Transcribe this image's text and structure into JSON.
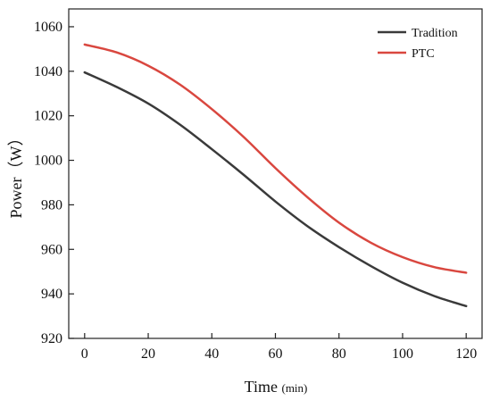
{
  "chart_data": {
    "type": "line",
    "xlabel": "Time",
    "xlabel_unit": "(min)",
    "ylabel": "Power（W）",
    "xlim": [
      -5,
      125
    ],
    "ylim": [
      920,
      1068
    ],
    "x_ticks": [
      0,
      20,
      40,
      60,
      80,
      100,
      120
    ],
    "y_ticks": [
      920,
      940,
      960,
      980,
      1000,
      1020,
      1040,
      1060
    ],
    "legend_position": "top-right",
    "grid": false,
    "series": [
      {
        "name": "Tradition",
        "color": "#3a3a3a",
        "x": [
          0,
          10,
          20,
          30,
          40,
          50,
          60,
          70,
          80,
          90,
          100,
          110,
          120
        ],
        "y": [
          1039.5,
          1033.0,
          1025.5,
          1016.0,
          1005.0,
          993.5,
          981.5,
          970.5,
          961.0,
          952.5,
          945.0,
          939.0,
          934.5
        ]
      },
      {
        "name": "PTC",
        "color": "#d9473f",
        "x": [
          0,
          10,
          20,
          30,
          40,
          50,
          60,
          70,
          80,
          90,
          100,
          110,
          120
        ],
        "y": [
          1052.0,
          1048.5,
          1042.5,
          1034.0,
          1023.0,
          1010.5,
          996.5,
          983.5,
          972.0,
          963.0,
          956.5,
          952.0,
          949.5
        ]
      }
    ]
  }
}
